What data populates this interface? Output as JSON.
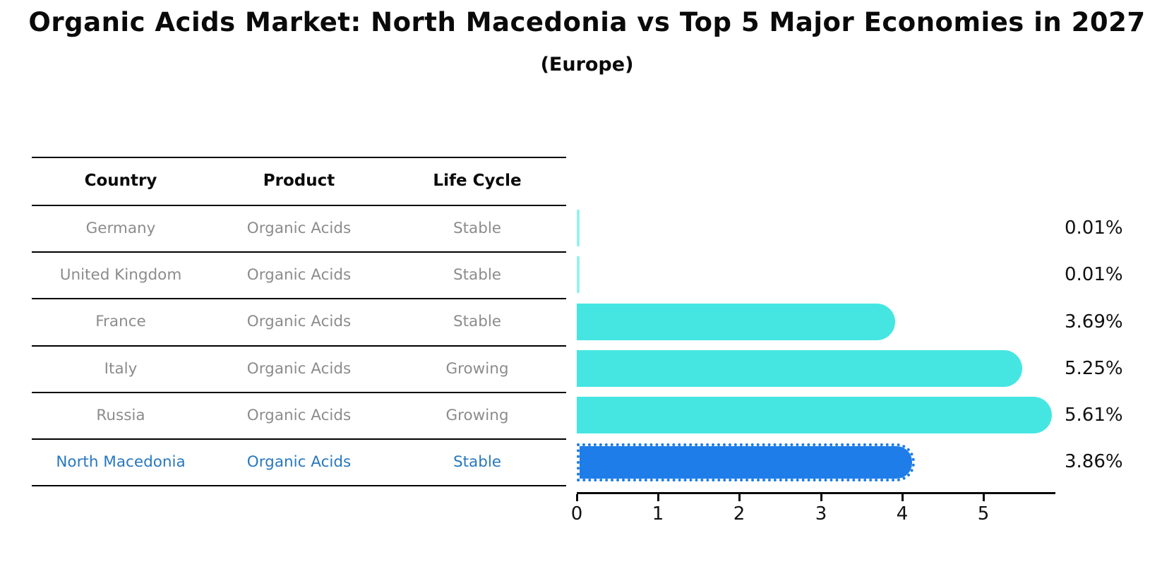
{
  "title": "Organic Acids Market: North Macedonia vs Top 5 Major Economies in 2027",
  "subtitle": "(Europe)",
  "table": {
    "headers": [
      "Country",
      "Product",
      "Life Cycle"
    ],
    "rows": [
      {
        "country": "Germany",
        "product": "Organic Acids",
        "life_cycle": "Stable",
        "highlight": false
      },
      {
        "country": "United Kingdom",
        "product": "Organic Acids",
        "life_cycle": "Stable",
        "highlight": false
      },
      {
        "country": "France",
        "product": "Organic Acids",
        "life_cycle": "Stable",
        "highlight": false
      },
      {
        "country": "Italy",
        "product": "Organic Acids",
        "life_cycle": "Growing",
        "highlight": false
      },
      {
        "country": "Russia",
        "product": "Organic Acids",
        "life_cycle": "Growing",
        "highlight": false
      },
      {
        "country": "North Macedonia",
        "product": "Organic Acids",
        "life_cycle": "Stable",
        "highlight": true
      }
    ]
  },
  "chart_data": {
    "type": "bar",
    "orientation": "horizontal",
    "categories": [
      "Germany",
      "United Kingdom",
      "France",
      "Italy",
      "Russia",
      "North Macedonia"
    ],
    "values": [
      0.01,
      0.01,
      3.69,
      5.25,
      5.61,
      3.86
    ],
    "value_labels": [
      "0.01%",
      "0.01%",
      "3.69%",
      "5.25%",
      "5.61%",
      "3.86%"
    ],
    "x_ticks": [
      0,
      1,
      2,
      3,
      4,
      5
    ],
    "xlim": [
      0,
      5.88
    ],
    "grid": false,
    "legend": "none",
    "bar_color": "#45e6e2",
    "highlight_color": "#1e7de8",
    "highlight_index": 5,
    "highlight_text_color": "#2878be"
  }
}
